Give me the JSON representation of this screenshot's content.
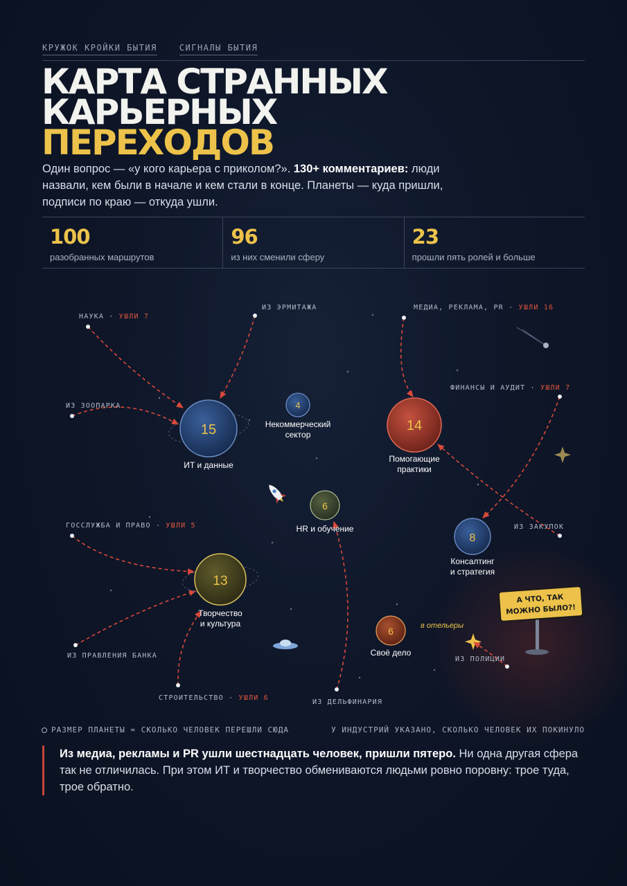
{
  "header": {
    "links": [
      "КРУЖОК КРОЙКИ БЫТИЯ",
      "СИГНАЛЫ БЫТИЯ"
    ],
    "title_line1": "КАРТА СТРАННЫХ",
    "title_line2": "КАРЬЕРНЫХ",
    "title_line3": "ПЕРЕХОДОВ",
    "intro_part1": "Один вопрос — «у кого карьера с приколом?». ",
    "intro_bold": "130+ комментариев:",
    "intro_part2": " люди назвали, кем были в начале и кем стали в конце. Планеты — куда пришли, подписи по краю — откуда ушли."
  },
  "stats": [
    {
      "value": "100",
      "label": "разобранных маршрутов"
    },
    {
      "value": "96",
      "label": "из них сменили сферу"
    },
    {
      "value": "23",
      "label": "прошли пять ролей и больше"
    }
  ],
  "planets": {
    "it": {
      "count": "15",
      "label_lines": [
        "ИТ и данные"
      ],
      "color": "#23406e"
    },
    "nko": {
      "count": "4",
      "label_lines": [
        "Некоммерческий",
        "сектор"
      ],
      "color": "#23406e"
    },
    "help": {
      "count": "14",
      "label_lines": [
        "Помогающие",
        "практики"
      ],
      "color": "#a73a2e"
    },
    "hr": {
      "count": "6",
      "label_lines": [
        "HR и обучение"
      ],
      "color": "#3e4a35"
    },
    "consult": {
      "count": "8",
      "label_lines": [
        "Консалтинг",
        "и стратегия"
      ],
      "color": "#23406e"
    },
    "art": {
      "count": "13",
      "label_lines": [
        "Творчество",
        "и культура"
      ],
      "color": "#4b4a22"
    },
    "own": {
      "count": "6",
      "label_lines": [
        "Своё дело"
      ],
      "color": "#8a3a22"
    }
  },
  "sources": {
    "science": {
      "name": "НАУКА",
      "sep": " · ",
      "left": "УШЛИ 7"
    },
    "hermitage": {
      "name": "ИЗ ЭРМИТАЖА"
    },
    "zoo": {
      "name": "ИЗ ЗООПАРКА"
    },
    "media": {
      "name": "МЕДИА, РЕКЛАМА, PR",
      "sep": " · ",
      "left": "УШЛИ 16"
    },
    "finance": {
      "name": "ФИНАНСЫ И АУДИТ",
      "sep": " · ",
      "left": "УШЛИ 7"
    },
    "procurement": {
      "name": "ИЗ ЗАКУПОК"
    },
    "gov": {
      "name": "ГОССЛУЖБА И ПРАВО",
      "sep": " · ",
      "left": "УШЛИ 5"
    },
    "bank": {
      "name": "ИЗ ПРАВЛЕНИЯ БАНКА"
    },
    "construction": {
      "name": "СТРОИТЕЛЬСТВО",
      "sep": " · ",
      "left": "УШЛИ 6"
    },
    "dolphinarium": {
      "name": "ИЗ ДЕЛЬФИНАРИЯ"
    },
    "police": {
      "name": "ИЗ ПОЛИЦИИ"
    }
  },
  "annotations": {
    "hotel": "в отельеры",
    "sign_line1": "А ЧТО, ТАК",
    "sign_line2": "МОЖНО БЫЛО?!"
  },
  "legend": {
    "left": "РАЗМЕР ПЛАНЕТЫ = СКОЛЬКО ЧЕЛОВЕК ПЕРЕШЛИ СЮДА",
    "right": "У ИНДУСТРИЙ УКАЗАНО, СКОЛЬКО ЧЕЛОВЕК ИХ ПОКИНУЛО"
  },
  "note": {
    "bold": "Из медиа, рекламы и PR ушли шестнадцать человек, пришли пятеро.",
    "text": " Ни одна другая сфера так не отличилась. При этом ИТ и творчество обмениваются людьми ровно поровну: трое туда, трое обратно."
  },
  "colors": {
    "accent": "#ecc24a",
    "arrow": "#d9493a",
    "bg": "#0e1628"
  }
}
